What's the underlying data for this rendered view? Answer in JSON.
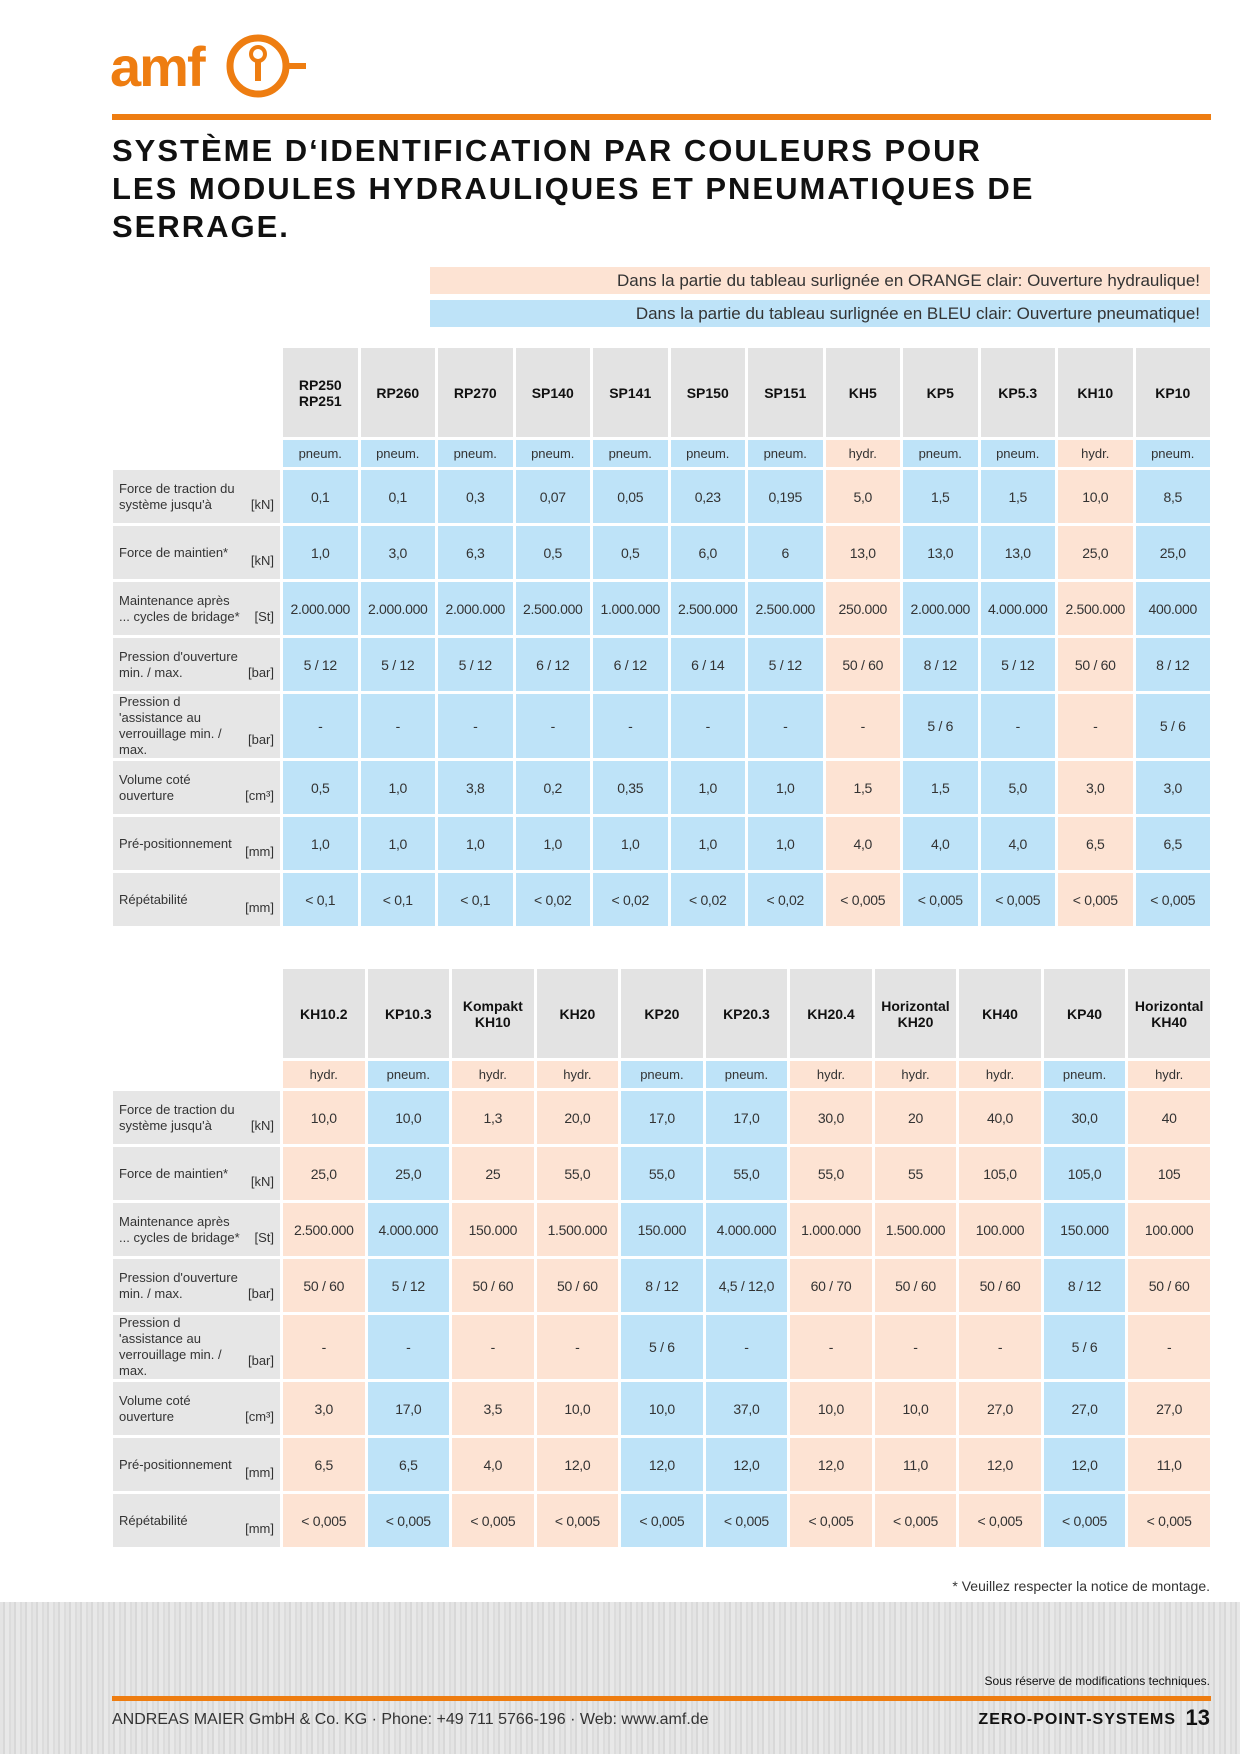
{
  "logo": "amf",
  "title": [
    "SYSTÈME D‘IDENTIFICATION PAR COULEURS POUR",
    "LES MODULES HYDRAULIQUES ET PNEUMATIQUES DE",
    "SERRAGE."
  ],
  "notes": {
    "hydr": "Dans la partie du tableau surlignée en ORANGE clair: Ouverture hydraulique!",
    "pneum": "Dans la partie du tableau surlignée en BLEU clair: Ouverture pneumatique!"
  },
  "tables": [
    {
      "columns": [
        {
          "name": "RP250 RP251",
          "type": "pneum."
        },
        {
          "name": "RP260",
          "type": "pneum."
        },
        {
          "name": "RP270",
          "type": "pneum."
        },
        {
          "name": "SP140",
          "type": "pneum."
        },
        {
          "name": "SP141",
          "type": "pneum."
        },
        {
          "name": "SP150",
          "type": "pneum."
        },
        {
          "name": "SP151",
          "type": "pneum."
        },
        {
          "name": "KH5",
          "type": "hydr."
        },
        {
          "name": "KP5",
          "type": "pneum."
        },
        {
          "name": "KP5.3",
          "type": "pneum."
        },
        {
          "name": "KH10",
          "type": "hydr."
        },
        {
          "name": "KP10",
          "type": "pneum."
        }
      ],
      "rows": [
        {
          "label": "Force de traction du système jusqu'à",
          "unit": "[kN]",
          "values": [
            "0,1",
            "0,1",
            "0,3",
            "0,07",
            "0,05",
            "0,23",
            "0,195",
            "5,0",
            "1,5",
            "1,5",
            "10,0",
            "8,5"
          ]
        },
        {
          "label": "Force de maintien*",
          "unit": "[kN]",
          "values": [
            "1,0",
            "3,0",
            "6,3",
            "0,5",
            "0,5",
            "6,0",
            "6",
            "13,0",
            "13,0",
            "13,0",
            "25,0",
            "25,0"
          ]
        },
        {
          "label": "Maintenance après ... cycles de bridage*",
          "unit": "[St]",
          "values": [
            "2.000.000",
            "2.000.000",
            "2.000.000",
            "2.500.000",
            "1.000.000",
            "2.500.000",
            "2.500.000",
            "250.000",
            "2.000.000",
            "4.000.000",
            "2.500.000",
            "400.000"
          ]
        },
        {
          "label": "Pression d'ouverture min. / max.",
          "unit": "[bar]",
          "values": [
            "5 / 12",
            "5 / 12",
            "5 / 12",
            "6 / 12",
            "6 / 12",
            "6 / 14",
            "5 / 12",
            "50 / 60",
            "8 / 12",
            "5 / 12",
            "50 / 60",
            "8 / 12"
          ]
        },
        {
          "label": "Pression d 'assistance au verrouillage min. / max.",
          "unit": "[bar]",
          "values": [
            "-",
            "-",
            "-",
            "-",
            "-",
            "-",
            "-",
            "-",
            "5 / 6",
            "-",
            "-",
            "5 / 6"
          ]
        },
        {
          "label": "Volume coté ouverture",
          "unit": "[cm³]",
          "values": [
            "0,5",
            "1,0",
            "3,8",
            "0,2",
            "0,35",
            "1,0",
            "1,0",
            "1,5",
            "1,5",
            "5,0",
            "3,0",
            "3,0"
          ]
        },
        {
          "label": "Pré-positionnement",
          "unit": "[mm]",
          "values": [
            "1,0",
            "1,0",
            "1,0",
            "1,0",
            "1,0",
            "1,0",
            "1,0",
            "4,0",
            "4,0",
            "4,0",
            "6,5",
            "6,5"
          ]
        },
        {
          "label": "Répétabilité",
          "unit": "[mm]",
          "values": [
            "< 0,1",
            "< 0,1",
            "< 0,1",
            "< 0,02",
            "< 0,02",
            "< 0,02",
            "< 0,02",
            "< 0,005",
            "< 0,005",
            "< 0,005",
            "< 0,005",
            "< 0,005"
          ]
        }
      ]
    },
    {
      "columns": [
        {
          "name": "KH10.2",
          "type": "hydr."
        },
        {
          "name": "KP10.3",
          "type": "pneum."
        },
        {
          "name": "Kompakt KH10",
          "type": "hydr."
        },
        {
          "name": "KH20",
          "type": "hydr."
        },
        {
          "name": "KP20",
          "type": "pneum."
        },
        {
          "name": "KP20.3",
          "type": "pneum."
        },
        {
          "name": "KH20.4",
          "type": "hydr."
        },
        {
          "name": "Horizontal KH20",
          "type": "hydr."
        },
        {
          "name": "KH40",
          "type": "hydr."
        },
        {
          "name": "KP40",
          "type": "pneum."
        },
        {
          "name": "Horizontal KH40",
          "type": "hydr."
        }
      ],
      "rows": [
        {
          "label": "Force de traction du système jusqu'à",
          "unit": "[kN]",
          "values": [
            "10,0",
            "10,0",
            "1,3",
            "20,0",
            "17,0",
            "17,0",
            "30,0",
            "20",
            "40,0",
            "30,0",
            "40"
          ]
        },
        {
          "label": "Force de maintien*",
          "unit": "[kN]",
          "values": [
            "25,0",
            "25,0",
            "25",
            "55,0",
            "55,0",
            "55,0",
            "55,0",
            "55",
            "105,0",
            "105,0",
            "105"
          ]
        },
        {
          "label": "Maintenance après ... cycles de bridage*",
          "unit": "[St]",
          "values": [
            "2.500.000",
            "4.000.000",
            "150.000",
            "1.500.000",
            "150.000",
            "4.000.000",
            "1.000.000",
            "1.500.000",
            "100.000",
            "150.000",
            "100.000"
          ]
        },
        {
          "label": "Pression d'ouverture min. / max.",
          "unit": "[bar]",
          "values": [
            "50 / 60",
            "5 / 12",
            "50 / 60",
            "50 / 60",
            "8 / 12",
            "4,5 / 12,0",
            "60 / 70",
            "50 / 60",
            "50 / 60",
            "8 / 12",
            "50 / 60"
          ]
        },
        {
          "label": "Pression d 'assistance au verrouillage min. / max.",
          "unit": "[bar]",
          "values": [
            "-",
            "-",
            "-",
            "-",
            "5 / 6",
            "-",
            "-",
            "-",
            "-",
            "5 / 6",
            "-"
          ]
        },
        {
          "label": "Volume coté ouverture",
          "unit": "[cm³]",
          "values": [
            "3,0",
            "17,0",
            "3,5",
            "10,0",
            "10,0",
            "37,0",
            "10,0",
            "10,0",
            "27,0",
            "27,0",
            "27,0"
          ]
        },
        {
          "label": "Pré-positionnement",
          "unit": "[mm]",
          "values": [
            "6,5",
            "6,5",
            "4,0",
            "12,0",
            "12,0",
            "12,0",
            "12,0",
            "11,0",
            "12,0",
            "12,0",
            "11,0"
          ]
        },
        {
          "label": "Répétabilité",
          "unit": "[mm]",
          "values": [
            "< 0,005",
            "< 0,005",
            "< 0,005",
            "< 0,005",
            "< 0,005",
            "< 0,005",
            "< 0,005",
            "< 0,005",
            "< 0,005",
            "< 0,005",
            "< 0,005"
          ]
        }
      ]
    }
  ],
  "footer": {
    "note": "* Veuillez respecter la notice de montage.",
    "reserve": "Sous réserve de modifications techniques.",
    "company": "ANDREAS MAIER GmbH & Co. KG · Phone: +49 711 5766-196 · Web: www.amf.de",
    "series": "ZERO-POINT-SYSTEMS",
    "page": "13"
  }
}
